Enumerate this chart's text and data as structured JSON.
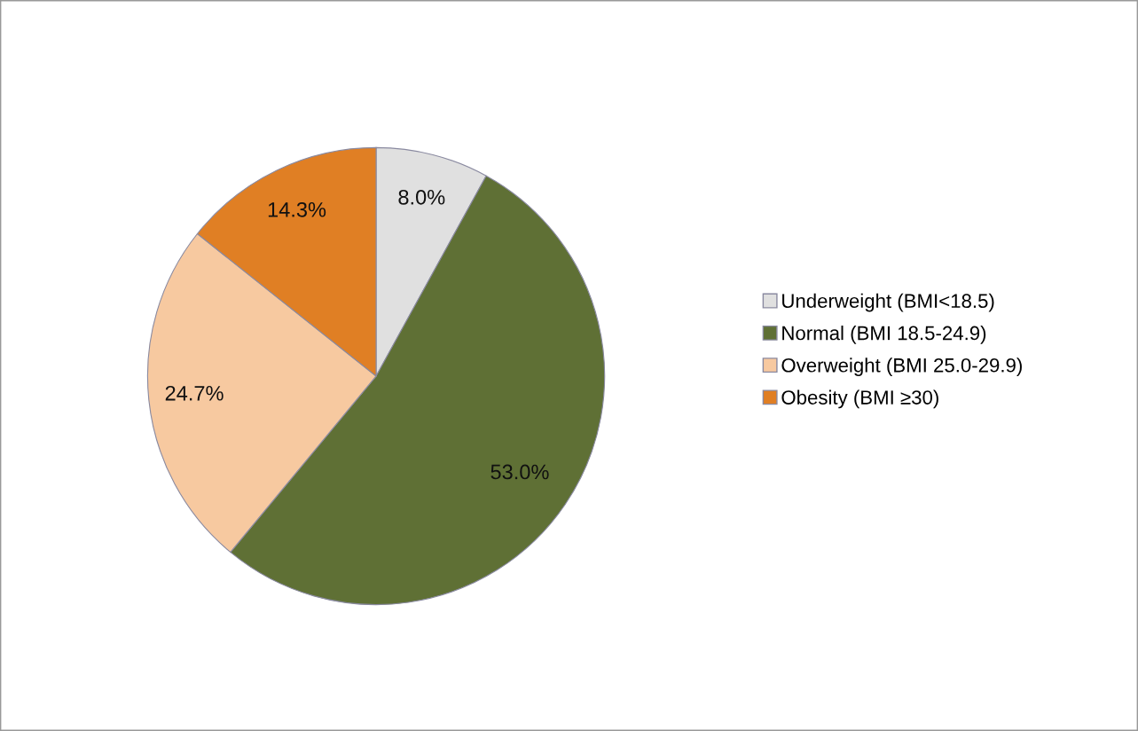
{
  "chart_data": {
    "type": "pie",
    "categories": [
      "Underweight (BMI<18.5)",
      "Normal (BMI 18.5-24.9)",
      "Overweight (BMI 25.0-29.9)",
      "Obesity (BMI ≥30)"
    ],
    "values": [
      8.0,
      53.0,
      24.7,
      14.3
    ],
    "colors": [
      "#e0e0e0",
      "#5f7035",
      "#f7c9a0",
      "#e07f24"
    ],
    "value_labels": [
      "8.0%",
      "53.0%",
      "24.7%",
      "14.3%"
    ],
    "legend": "right"
  }
}
